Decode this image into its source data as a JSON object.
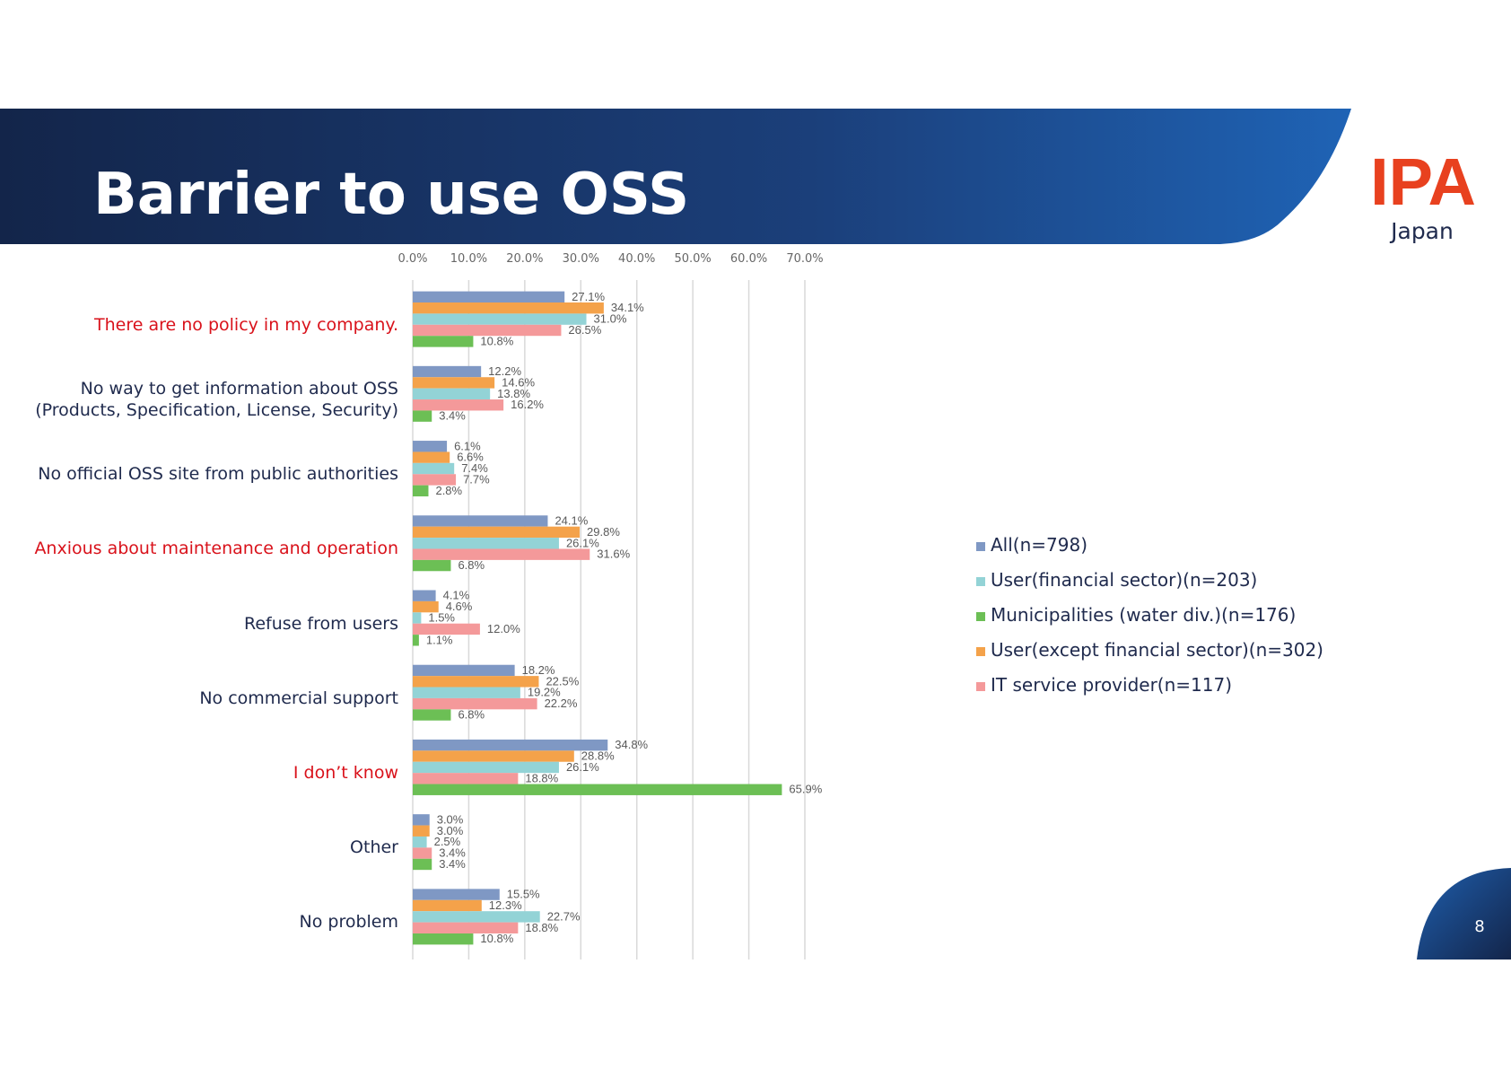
{
  "header": {
    "title": "Barrier to use OSS",
    "logo": "IPA",
    "logo_sub": "Japan"
  },
  "page_number": "8",
  "chart_data": {
    "type": "hbar",
    "categories": [
      "There are no policy in my company.",
      "No way to get information about OSS\n(Products, Specification, License, Security)",
      "No official OSS site from public authorities",
      "Anxious about maintenance and operation",
      "Refuse from users",
      "No commercial support",
      "I don’t know",
      "Other",
      "No problem"
    ],
    "category_colors": [
      "#d9121b",
      "#1f2a4d",
      "#1f2a4d",
      "#d9121b",
      "#1f2a4d",
      "#1f2a4d",
      "#d9121b",
      "#1f2a4d",
      "#1f2a4d"
    ],
    "series": [
      {
        "name": "All(n=798)",
        "color": "#7f98c4",
        "values": [
          27.1,
          12.2,
          6.1,
          24.1,
          4.1,
          18.2,
          34.8,
          3.0,
          15.5
        ],
        "value_labels": [
          "27.1%",
          "12.2%",
          "6.1%",
          "24.1%",
          "4.1%",
          "18.2%",
          "34.8%",
          "3.0%",
          "15.5%"
        ]
      },
      {
        "name": "User(except financial sector)(n=302)",
        "color": "#f4a24a",
        "values": [
          34.1,
          14.6,
          6.6,
          29.8,
          4.6,
          22.5,
          28.8,
          3.0,
          12.3
        ],
        "value_labels": [
          "34.1%",
          "14.6%",
          "6.6%",
          "29.8%",
          "4.6%",
          "22.5%",
          "28.8%",
          "3.0%",
          "12.3%"
        ]
      },
      {
        "name": "User(financial sector)(n=203)",
        "color": "#93d3d6",
        "values": [
          31.0,
          13.8,
          7.4,
          26.1,
          1.5,
          19.2,
          26.1,
          2.5,
          22.7
        ],
        "value_labels": [
          "31.0%",
          "13.8%",
          "7.4%",
          "26.1%",
          "1.5%",
          "19.2%",
          "26.1%",
          "2.5%",
          "22.7%"
        ]
      },
      {
        "name": "IT service provider(n=117)",
        "color": "#f4999a",
        "values": [
          26.5,
          16.2,
          7.7,
          31.6,
          12.0,
          22.2,
          18.8,
          3.4,
          18.8
        ],
        "value_labels": [
          "26.5%",
          "16.2%",
          "7.7%",
          "31.6%",
          "12.0%",
          "22.2%",
          "18.8%",
          "3.4%",
          "18.8%"
        ]
      },
      {
        "name": "Municipalities (water div.)(n=176)",
        "color": "#6cbf55",
        "values": [
          10.8,
          3.4,
          2.8,
          6.8,
          1.1,
          6.8,
          65.9,
          3.4,
          10.8
        ],
        "value_labels": [
          "10.8%",
          "3.4%",
          "2.8%",
          "6.8%",
          "1.1%",
          "6.8%",
          "65.9%",
          "3.4%",
          "10.8%"
        ]
      }
    ],
    "xlim": [
      0,
      70
    ],
    "xticks": [
      {
        "value": 0,
        "label": "0.0%"
      },
      {
        "value": 10,
        "label": "10.0%"
      },
      {
        "value": 20,
        "label": "20.0%"
      },
      {
        "value": 30,
        "label": "30.0%"
      },
      {
        "value": 40,
        "label": "40.0%"
      },
      {
        "value": 50,
        "label": "50.0%"
      },
      {
        "value": 60,
        "label": "60.0%"
      },
      {
        "value": 70,
        "label": "70.0%"
      }
    ],
    "grid": true
  }
}
